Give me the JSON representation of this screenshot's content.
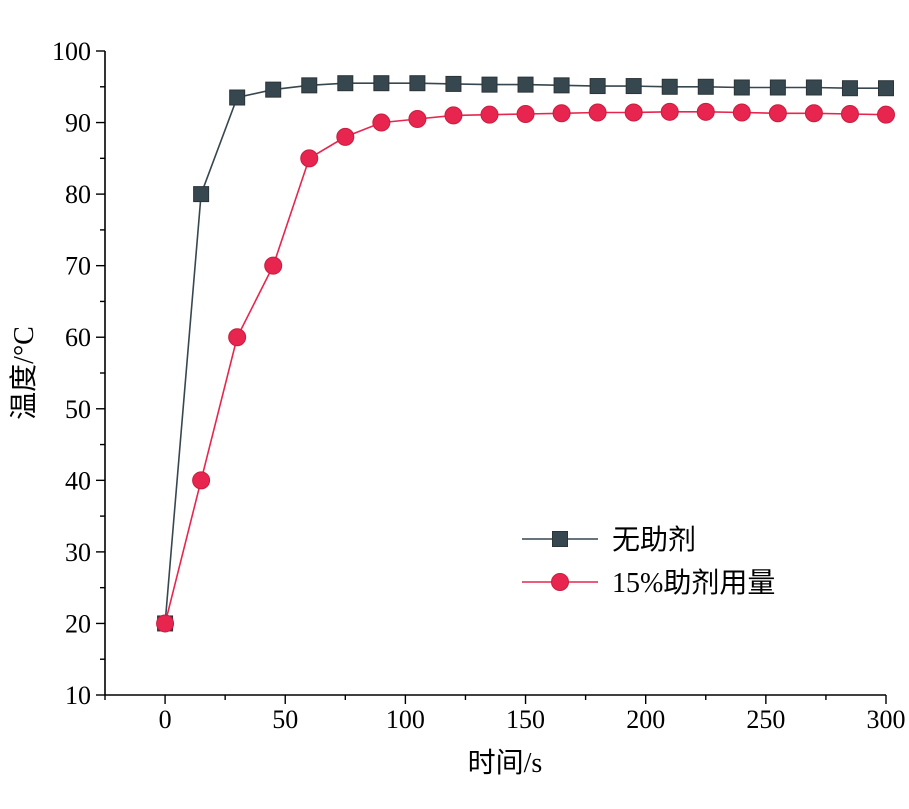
{
  "chart_data": {
    "type": "line",
    "title": "",
    "xlabel": "时间/s",
    "ylabel": "温度/°C",
    "xlim": [
      -25,
      300
    ],
    "ylim": [
      10,
      100
    ],
    "x_ticks": [
      0,
      50,
      100,
      150,
      200,
      250,
      300
    ],
    "y_ticks": [
      10,
      20,
      30,
      40,
      50,
      60,
      70,
      80,
      90,
      100
    ],
    "grid": false,
    "legend_position": "lower-right",
    "series": [
      {
        "name": "无助剂",
        "color": "#37474f",
        "marker": "square",
        "x": [
          0,
          15,
          30,
          45,
          60,
          75,
          90,
          105,
          120,
          135,
          150,
          165,
          180,
          195,
          210,
          225,
          240,
          255,
          270,
          285,
          300
        ],
        "y": [
          20,
          80,
          93.5,
          94.6,
          95.2,
          95.5,
          95.5,
          95.5,
          95.4,
          95.3,
          95.3,
          95.2,
          95.1,
          95.1,
          95.0,
          95.0,
          94.9,
          94.9,
          94.9,
          94.8,
          94.8
        ]
      },
      {
        "name": "15%助剂用量",
        "color": "#e8254f",
        "marker": "circle",
        "x": [
          0,
          15,
          30,
          45,
          60,
          75,
          90,
          105,
          120,
          135,
          150,
          165,
          180,
          195,
          210,
          225,
          240,
          255,
          270,
          285,
          300
        ],
        "y": [
          20,
          40,
          60,
          70,
          85,
          88,
          90,
          90.5,
          91,
          91.1,
          91.2,
          91.3,
          91.4,
          91.4,
          91.5,
          91.5,
          91.4,
          91.3,
          91.3,
          91.2,
          91.1
        ]
      }
    ]
  }
}
